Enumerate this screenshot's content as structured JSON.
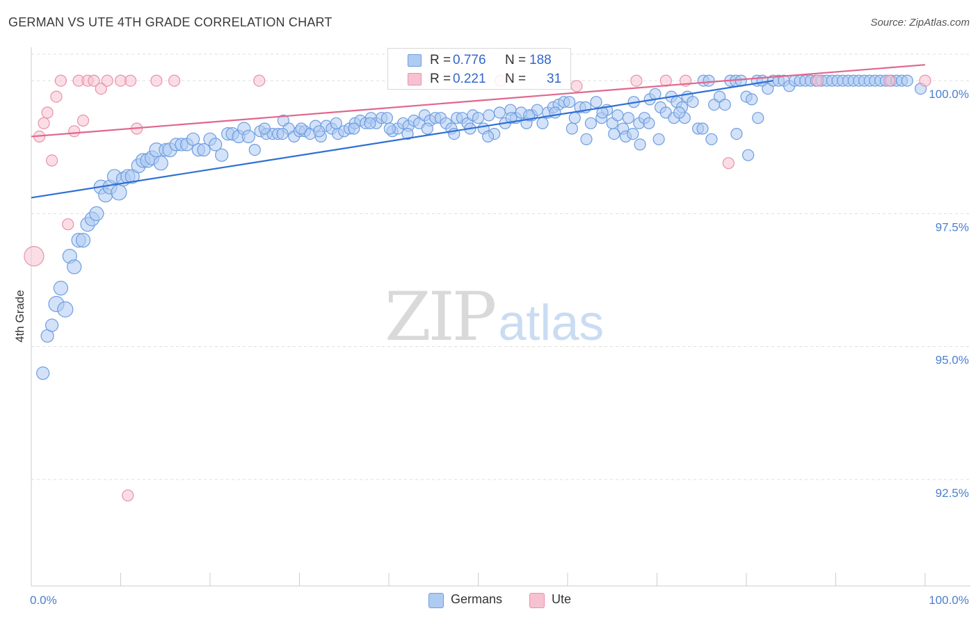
{
  "title": "GERMAN VS UTE 4TH GRADE CORRELATION CHART",
  "source": "Source: ZipAtlas.com",
  "watermark": {
    "zip": "ZIP",
    "atlas": "atlas"
  },
  "legend": {
    "rows": [
      {
        "r_label": "R =",
        "r_value": "0.776",
        "n_label": "N =",
        "n_value": "188"
      },
      {
        "r_label": "R =",
        "r_value": "0.221",
        "n_label": "N =",
        "n_value": "31"
      }
    ]
  },
  "bottom_legend": [
    "Germans",
    "Ute"
  ],
  "colors": {
    "germans_fill": "#aecbf2",
    "germans_stroke": "#6d9de0",
    "germans_line": "#2e6fd4",
    "ute_fill": "#f7c2d0",
    "ute_stroke": "#e890ab",
    "ute_line": "#e0668d",
    "tick_label": "#4a7fd0",
    "grid": "#dddddd"
  },
  "chart_data": {
    "type": "scatter",
    "title": "GERMAN VS UTE 4TH GRADE CORRELATION CHART",
    "xlabel": "",
    "ylabel": "4th Grade",
    "xlim": [
      0,
      100
    ],
    "ylim": [
      90.25,
      100.25
    ],
    "x_tick_labels": [
      "0.0%",
      "100.0%"
    ],
    "y_ticks": [
      92.5,
      95.0,
      97.5,
      100.0
    ],
    "y_tick_labels": [
      "92.5%",
      "95.0%",
      "97.5%",
      "100.0%"
    ],
    "grid": true,
    "legend_position": "top-center",
    "series": [
      {
        "name": "Germans",
        "R": 0.776,
        "N": 188,
        "trend": {
          "x": [
            0,
            83
          ],
          "y": [
            97.8,
            100.0
          ]
        },
        "points": [
          [
            1.3,
            94.5,
            9
          ],
          [
            1.8,
            95.2,
            9
          ],
          [
            2.3,
            95.4,
            9
          ],
          [
            2.8,
            95.8,
            11
          ],
          [
            3.3,
            96.1,
            10
          ],
          [
            3.8,
            95.7,
            11
          ],
          [
            4.3,
            96.7,
            10
          ],
          [
            4.8,
            96.5,
            10
          ],
          [
            5.3,
            97.0,
            10
          ],
          [
            5.8,
            97.0,
            10
          ],
          [
            6.3,
            97.3,
            10
          ],
          [
            6.8,
            97.4,
            10
          ],
          [
            7.3,
            97.5,
            10
          ],
          [
            7.8,
            98.0,
            10
          ],
          [
            8.3,
            97.85,
            10
          ],
          [
            8.8,
            98.0,
            10
          ],
          [
            9.3,
            98.2,
            10
          ],
          [
            9.8,
            97.9,
            11
          ],
          [
            10.3,
            98.15,
            10
          ],
          [
            10.8,
            98.2,
            10
          ],
          [
            11.3,
            98.2,
            10
          ],
          [
            12,
            98.4,
            10
          ],
          [
            12.5,
            98.5,
            10
          ],
          [
            13,
            98.5,
            10
          ],
          [
            13.5,
            98.55,
            10
          ],
          [
            14,
            98.7,
            10
          ],
          [
            14.5,
            98.45,
            10
          ],
          [
            15,
            98.7,
            9
          ],
          [
            15.5,
            98.7,
            10
          ],
          [
            16.2,
            98.8,
            9
          ],
          [
            16.8,
            98.8,
            9
          ],
          [
            17.4,
            98.8,
            9
          ],
          [
            18.1,
            98.9,
            9
          ],
          [
            18.7,
            98.7,
            9
          ],
          [
            19.3,
            98.7,
            9
          ],
          [
            20,
            98.9,
            9
          ],
          [
            20.6,
            98.8,
            9
          ],
          [
            21.3,
            98.6,
            9
          ],
          [
            22,
            99.0,
            9
          ],
          [
            22.5,
            99.0,
            9
          ],
          [
            23.2,
            98.95,
            9
          ],
          [
            23.8,
            99.1,
            9
          ],
          [
            24.3,
            98.95,
            9
          ],
          [
            25,
            98.7,
            8
          ],
          [
            25.6,
            99.05,
            8
          ],
          [
            26.3,
            99.0,
            8
          ],
          [
            27,
            99.0,
            8
          ],
          [
            27.6,
            99.0,
            8
          ],
          [
            28.2,
            99.25,
            8
          ],
          [
            28.8,
            99.1,
            8
          ],
          [
            29.4,
            98.95,
            8
          ],
          [
            30,
            99.05,
            8
          ],
          [
            30.6,
            99.05,
            8
          ],
          [
            31.2,
            99.0,
            8
          ],
          [
            31.8,
            99.15,
            8
          ],
          [
            32.4,
            98.95,
            8
          ],
          [
            33,
            99.15,
            8
          ],
          [
            33.6,
            99.1,
            8
          ],
          [
            34.3,
            99.0,
            8
          ],
          [
            35,
            99.05,
            8
          ],
          [
            35.6,
            99.1,
            8
          ],
          [
            36.2,
            99.2,
            8
          ],
          [
            36.8,
            99.25,
            8
          ],
          [
            37.4,
            99.2,
            8
          ],
          [
            38,
            99.3,
            8
          ],
          [
            38.6,
            99.2,
            8
          ],
          [
            39.2,
            99.3,
            8
          ],
          [
            39.8,
            99.3,
            8
          ],
          [
            40.4,
            99.05,
            8
          ],
          [
            41,
            99.1,
            8
          ],
          [
            41.6,
            99.2,
            8
          ],
          [
            42.2,
            99.15,
            8
          ],
          [
            42.8,
            99.25,
            8
          ],
          [
            43.4,
            99.2,
            8
          ],
          [
            44,
            99.35,
            8
          ],
          [
            44.6,
            99.25,
            8
          ],
          [
            45.2,
            99.3,
            8
          ],
          [
            45.8,
            99.3,
            8
          ],
          [
            46.4,
            99.2,
            8
          ],
          [
            47,
            99.1,
            8
          ],
          [
            47.6,
            99.3,
            8
          ],
          [
            48.2,
            99.3,
            8
          ],
          [
            48.8,
            99.2,
            8
          ],
          [
            49.4,
            99.35,
            8
          ],
          [
            50,
            99.3,
            8
          ],
          [
            50.6,
            99.1,
            8
          ],
          [
            51.2,
            99.35,
            8
          ],
          [
            51.8,
            99.0,
            8
          ],
          [
            52.4,
            99.4,
            8
          ],
          [
            53,
            99.2,
            8
          ],
          [
            53.6,
            99.45,
            8
          ],
          [
            54.2,
            99.3,
            8
          ],
          [
            54.8,
            99.4,
            8
          ],
          [
            55.4,
            99.2,
            8
          ],
          [
            56,
            99.35,
            8
          ],
          [
            56.6,
            99.45,
            8
          ],
          [
            57.2,
            99.2,
            8
          ],
          [
            57.8,
            99.4,
            8
          ],
          [
            58.4,
            99.5,
            8
          ],
          [
            59,
            99.55,
            8
          ],
          [
            59.6,
            99.6,
            8
          ],
          [
            60.2,
            99.6,
            8
          ],
          [
            60.8,
            99.3,
            8
          ],
          [
            61.4,
            99.5,
            8
          ],
          [
            62,
            99.5,
            8
          ],
          [
            62.6,
            99.2,
            8
          ],
          [
            63.2,
            99.6,
            8
          ],
          [
            63.8,
            99.3,
            8
          ],
          [
            64.4,
            99.45,
            8
          ],
          [
            65,
            99.2,
            8
          ],
          [
            65.6,
            99.35,
            8
          ],
          [
            66.2,
            99.1,
            8
          ],
          [
            66.8,
            99.3,
            8
          ],
          [
            67.4,
            99.6,
            8
          ],
          [
            68,
            99.2,
            8
          ],
          [
            68.6,
            99.3,
            8
          ],
          [
            69.2,
            99.65,
            8
          ],
          [
            69.8,
            99.75,
            8
          ],
          [
            70.4,
            99.5,
            8
          ],
          [
            71,
            99.4,
            8
          ],
          [
            71.6,
            99.7,
            8
          ],
          [
            72.2,
            99.6,
            8
          ],
          [
            72.8,
            99.5,
            8
          ],
          [
            73.4,
            99.7,
            8
          ],
          [
            74,
            99.6,
            8
          ],
          [
            74.6,
            99.1,
            8
          ],
          [
            75.2,
            100.0,
            8
          ],
          [
            75.8,
            100.0,
            8
          ],
          [
            76.4,
            99.55,
            8
          ],
          [
            77,
            99.7,
            8
          ],
          [
            77.6,
            99.55,
            8
          ],
          [
            78.2,
            100.0,
            8
          ],
          [
            78.8,
            100.0,
            8
          ],
          [
            79.4,
            100.0,
            8
          ],
          [
            80,
            99.7,
            8
          ],
          [
            80.6,
            99.65,
            8
          ],
          [
            81.2,
            100.0,
            8
          ],
          [
            81.8,
            100.0,
            8
          ],
          [
            82.4,
            99.85,
            8
          ],
          [
            83,
            100.0,
            8
          ],
          [
            83.6,
            100.0,
            8
          ],
          [
            84.2,
            100.0,
            8
          ],
          [
            84.8,
            99.9,
            8
          ],
          [
            85.4,
            100.0,
            8
          ],
          [
            86,
            100.0,
            8
          ],
          [
            86.6,
            100.0,
            8
          ],
          [
            87.2,
            100.0,
            8
          ],
          [
            87.8,
            100.0,
            8
          ],
          [
            88.4,
            100.0,
            8
          ],
          [
            89,
            100.0,
            8
          ],
          [
            89.6,
            100.0,
            8
          ],
          [
            90.2,
            100.0,
            8
          ],
          [
            90.8,
            100.0,
            8
          ],
          [
            91.4,
            100.0,
            8
          ],
          [
            92,
            100.0,
            8
          ],
          [
            92.6,
            100.0,
            8
          ],
          [
            93.2,
            100.0,
            8
          ],
          [
            93.8,
            100.0,
            8
          ],
          [
            94.4,
            100.0,
            8
          ],
          [
            95,
            100.0,
            8
          ],
          [
            95.6,
            100.0,
            8
          ],
          [
            96.2,
            100.0,
            8
          ],
          [
            96.8,
            100.0,
            8
          ],
          [
            97.4,
            100.0,
            8
          ],
          [
            98,
            100.0,
            8
          ],
          [
            99.5,
            99.85,
            8
          ],
          [
            62.1,
            98.9,
            8
          ],
          [
            66.5,
            98.95,
            8
          ],
          [
            68.1,
            98.8,
            8
          ],
          [
            70.2,
            98.9,
            8
          ],
          [
            75.1,
            99.1,
            8
          ],
          [
            76.1,
            98.9,
            8
          ],
          [
            78.9,
            99.0,
            8
          ],
          [
            80.2,
            98.6,
            8
          ],
          [
            81.3,
            99.3,
            8
          ],
          [
            60.5,
            99.1,
            8
          ],
          [
            63.9,
            99.4,
            8
          ],
          [
            65.2,
            99.0,
            8
          ],
          [
            67.3,
            99.0,
            8
          ],
          [
            69.1,
            99.2,
            8
          ],
          [
            71.9,
            99.3,
            8
          ],
          [
            73.1,
            99.3,
            8
          ],
          [
            72.5,
            99.4,
            8
          ],
          [
            58.6,
            99.4,
            8
          ],
          [
            55.7,
            99.35,
            8
          ],
          [
            53.7,
            99.3,
            8
          ],
          [
            51.1,
            98.95,
            8
          ],
          [
            49.1,
            99.1,
            8
          ],
          [
            47.3,
            99.0,
            8
          ],
          [
            44.3,
            99.1,
            8
          ],
          [
            42.1,
            99.0,
            8
          ],
          [
            40.1,
            99.1,
            8
          ],
          [
            37.9,
            99.2,
            8
          ],
          [
            36.1,
            99.1,
            8
          ],
          [
            34.1,
            99.2,
            8
          ],
          [
            32.2,
            99.05,
            8
          ],
          [
            30.2,
            99.1,
            8
          ],
          [
            28.1,
            99.0,
            8
          ],
          [
            26.1,
            99.1,
            8
          ]
        ]
      },
      {
        "name": "Ute",
        "R": 0.221,
        "N": 31,
        "trend": {
          "x": [
            0,
            100
          ],
          "y": [
            98.95,
            100.3
          ]
        },
        "points": [
          [
            0.3,
            96.7,
            14
          ],
          [
            0.9,
            98.95,
            8
          ],
          [
            1.4,
            99.2,
            8
          ],
          [
            1.8,
            99.4,
            8
          ],
          [
            2.3,
            98.5,
            8
          ],
          [
            2.8,
            99.7,
            8
          ],
          [
            3.3,
            100.0,
            8
          ],
          [
            4.1,
            97.3,
            8
          ],
          [
            4.8,
            99.05,
            8
          ],
          [
            5.3,
            100.0,
            8
          ],
          [
            5.8,
            99.25,
            8
          ],
          [
            6.3,
            100.0,
            8
          ],
          [
            7.0,
            100.0,
            8
          ],
          [
            7.8,
            99.85,
            8
          ],
          [
            8.5,
            100.0,
            8
          ],
          [
            10.0,
            100.0,
            8
          ],
          [
            10.8,
            92.2,
            8
          ],
          [
            11.1,
            100.0,
            8
          ],
          [
            11.8,
            99.1,
            8
          ],
          [
            14.0,
            100.0,
            8
          ],
          [
            16.0,
            100.0,
            8
          ],
          [
            25.5,
            100.0,
            8
          ],
          [
            52.5,
            100.0,
            8
          ],
          [
            67.7,
            100.0,
            8
          ],
          [
            71.0,
            100.0,
            8
          ],
          [
            73.2,
            100.0,
            8
          ],
          [
            78.0,
            98.45,
            8
          ],
          [
            88.0,
            100.0,
            8
          ],
          [
            96.0,
            100.0,
            8
          ],
          [
            100.0,
            100.0,
            8
          ],
          [
            61.0,
            99.9,
            8
          ]
        ]
      }
    ]
  }
}
